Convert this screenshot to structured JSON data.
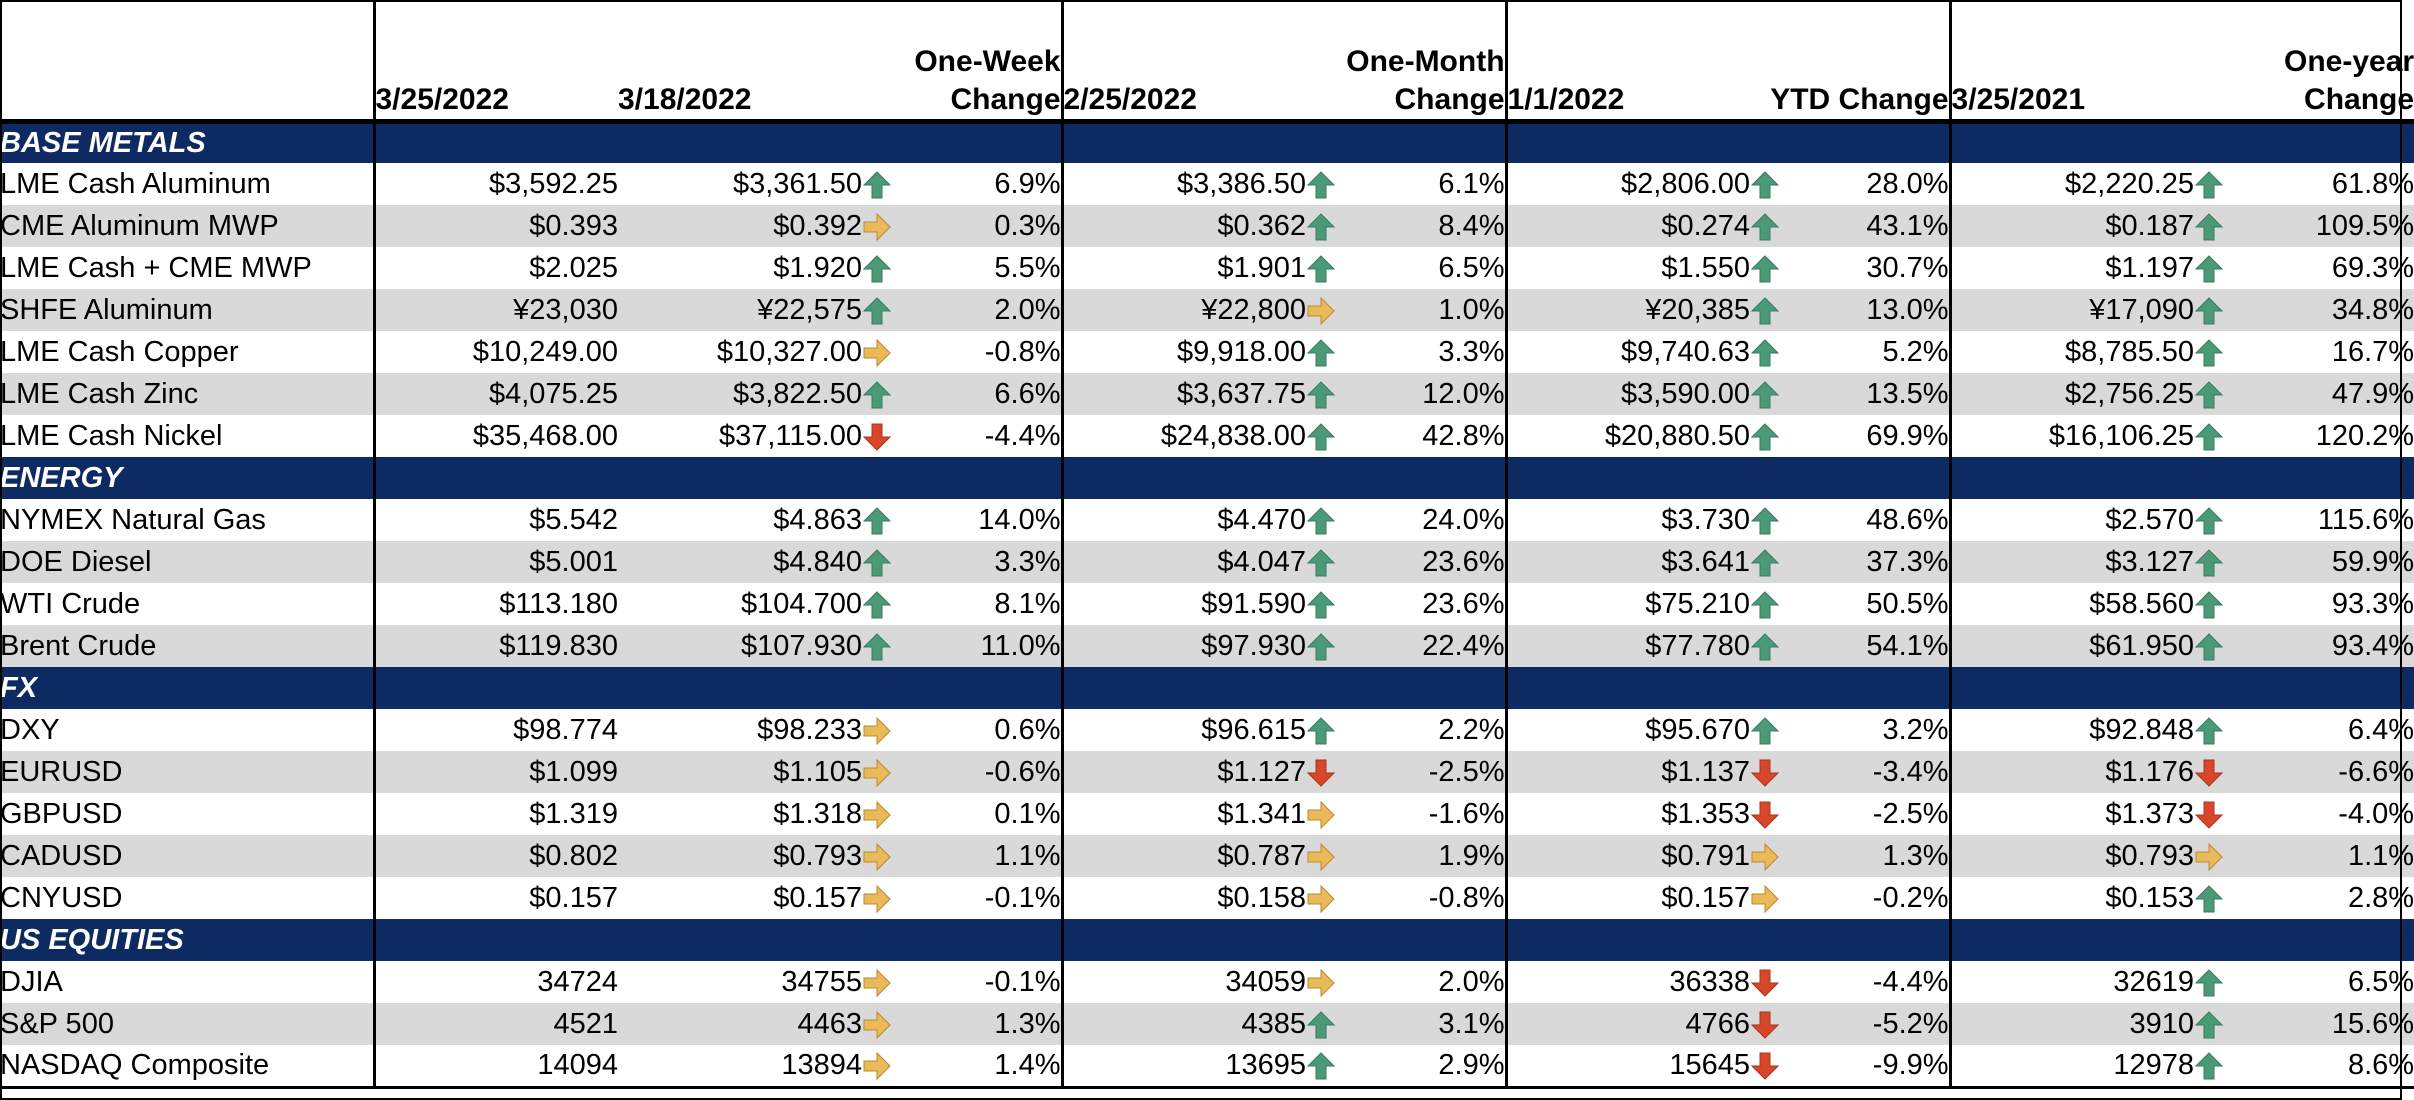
{
  "colors": {
    "section_bg": "#0e2a63",
    "alt_row_bg": "#d9d9d9",
    "up": "#4a9a78",
    "flat": "#e9b95a",
    "down": "#d9472b"
  },
  "header": {
    "date_current": "3/25/2022",
    "date_week": "3/18/2022",
    "week_change": [
      "One-Week",
      "Change"
    ],
    "date_month": "2/25/2022",
    "month_change": [
      "One-Month",
      "Change"
    ],
    "date_ytd": "1/1/2022",
    "ytd_change": "YTD Change",
    "date_year": "3/25/2021",
    "year_change": [
      "One-year",
      "Change"
    ]
  },
  "sections": [
    {
      "title": "BASE METALS",
      "rows": [
        {
          "name": "LME Cash Aluminum",
          "current": "$3,592.25",
          "week": "$3,361.50",
          "week_dir": "up",
          "week_pct": "6.9%",
          "month": "$3,386.50",
          "month_dir": "up",
          "month_pct": "6.1%",
          "ytd": "$2,806.00",
          "ytd_dir": "up",
          "ytd_pct": "28.0%",
          "year": "$2,220.25",
          "year_dir": "up",
          "year_pct": "61.8%"
        },
        {
          "name": "CME Aluminum MWP",
          "current": "$0.393",
          "week": "$0.392",
          "week_dir": "flat",
          "week_pct": "0.3%",
          "month": "$0.362",
          "month_dir": "up",
          "month_pct": "8.4%",
          "ytd": "$0.274",
          "ytd_dir": "up",
          "ytd_pct": "43.1%",
          "year": "$0.187",
          "year_dir": "up",
          "year_pct": "109.5%"
        },
        {
          "name": "LME Cash + CME MWP",
          "current": "$2.025",
          "week": "$1.920",
          "week_dir": "up",
          "week_pct": "5.5%",
          "month": "$1.901",
          "month_dir": "up",
          "month_pct": "6.5%",
          "ytd": "$1.550",
          "ytd_dir": "up",
          "ytd_pct": "30.7%",
          "year": "$1.197",
          "year_dir": "up",
          "year_pct": "69.3%"
        },
        {
          "name": "SHFE Aluminum",
          "current": "¥23,030",
          "week": "¥22,575",
          "week_dir": "up",
          "week_pct": "2.0%",
          "month": "¥22,800",
          "month_dir": "flat",
          "month_pct": "1.0%",
          "ytd": "¥20,385",
          "ytd_dir": "up",
          "ytd_pct": "13.0%",
          "year": "¥17,090",
          "year_dir": "up",
          "year_pct": "34.8%"
        },
        {
          "name": "LME Cash Copper",
          "current": "$10,249.00",
          "week": "$10,327.00",
          "week_dir": "flat",
          "week_pct": "-0.8%",
          "month": "$9,918.00",
          "month_dir": "up",
          "month_pct": "3.3%",
          "ytd": "$9,740.63",
          "ytd_dir": "up",
          "ytd_pct": "5.2%",
          "year": "$8,785.50",
          "year_dir": "up",
          "year_pct": "16.7%"
        },
        {
          "name": "LME Cash Zinc",
          "current": "$4,075.25",
          "week": "$3,822.50",
          "week_dir": "up",
          "week_pct": "6.6%",
          "month": "$3,637.75",
          "month_dir": "up",
          "month_pct": "12.0%",
          "ytd": "$3,590.00",
          "ytd_dir": "up",
          "ytd_pct": "13.5%",
          "year": "$2,756.25",
          "year_dir": "up",
          "year_pct": "47.9%"
        },
        {
          "name": "LME Cash Nickel",
          "current": "$35,468.00",
          "week": "$37,115.00",
          "week_dir": "down",
          "week_pct": "-4.4%",
          "month": "$24,838.00",
          "month_dir": "up",
          "month_pct": "42.8%",
          "ytd": "$20,880.50",
          "ytd_dir": "up",
          "ytd_pct": "69.9%",
          "year": "$16,106.25",
          "year_dir": "up",
          "year_pct": "120.2%"
        }
      ]
    },
    {
      "title": "ENERGY",
      "rows": [
        {
          "name": "NYMEX Natural Gas",
          "current": "$5.542",
          "week": "$4.863",
          "week_dir": "up",
          "week_pct": "14.0%",
          "month": "$4.470",
          "month_dir": "up",
          "month_pct": "24.0%",
          "ytd": "$3.730",
          "ytd_dir": "up",
          "ytd_pct": "48.6%",
          "year": "$2.570",
          "year_dir": "up",
          "year_pct": "115.6%"
        },
        {
          "name": "DOE Diesel",
          "current": "$5.001",
          "week": "$4.840",
          "week_dir": "up",
          "week_pct": "3.3%",
          "month": "$4.047",
          "month_dir": "up",
          "month_pct": "23.6%",
          "ytd": "$3.641",
          "ytd_dir": "up",
          "ytd_pct": "37.3%",
          "year": "$3.127",
          "year_dir": "up",
          "year_pct": "59.9%"
        },
        {
          "name": "WTI Crude",
          "current": "$113.180",
          "week": "$104.700",
          "week_dir": "up",
          "week_pct": "8.1%",
          "month": "$91.590",
          "month_dir": "up",
          "month_pct": "23.6%",
          "ytd": "$75.210",
          "ytd_dir": "up",
          "ytd_pct": "50.5%",
          "year": "$58.560",
          "year_dir": "up",
          "year_pct": "93.3%"
        },
        {
          "name": "Brent Crude",
          "current": "$119.830",
          "week": "$107.930",
          "week_dir": "up",
          "week_pct": "11.0%",
          "month": "$97.930",
          "month_dir": "up",
          "month_pct": "22.4%",
          "ytd": "$77.780",
          "ytd_dir": "up",
          "ytd_pct": "54.1%",
          "year": "$61.950",
          "year_dir": "up",
          "year_pct": "93.4%"
        }
      ]
    },
    {
      "title": "FX",
      "rows": [
        {
          "name": "DXY",
          "current": "$98.774",
          "week": "$98.233",
          "week_dir": "flat",
          "week_pct": "0.6%",
          "month": "$96.615",
          "month_dir": "up",
          "month_pct": "2.2%",
          "ytd": "$95.670",
          "ytd_dir": "up",
          "ytd_pct": "3.2%",
          "year": "$92.848",
          "year_dir": "up",
          "year_pct": "6.4%"
        },
        {
          "name": "EURUSD",
          "current": "$1.099",
          "week": "$1.105",
          "week_dir": "flat",
          "week_pct": "-0.6%",
          "month": "$1.127",
          "month_dir": "down",
          "month_pct": "-2.5%",
          "ytd": "$1.137",
          "ytd_dir": "down",
          "ytd_pct": "-3.4%",
          "year": "$1.176",
          "year_dir": "down",
          "year_pct": "-6.6%"
        },
        {
          "name": "GBPUSD",
          "current": "$1.319",
          "week": "$1.318",
          "week_dir": "flat",
          "week_pct": "0.1%",
          "month": "$1.341",
          "month_dir": "flat",
          "month_pct": "-1.6%",
          "ytd": "$1.353",
          "ytd_dir": "down",
          "ytd_pct": "-2.5%",
          "year": "$1.373",
          "year_dir": "down",
          "year_pct": "-4.0%"
        },
        {
          "name": "CADUSD",
          "current": "$0.802",
          "week": "$0.793",
          "week_dir": "flat",
          "week_pct": "1.1%",
          "month": "$0.787",
          "month_dir": "flat",
          "month_pct": "1.9%",
          "ytd": "$0.791",
          "ytd_dir": "flat",
          "ytd_pct": "1.3%",
          "year": "$0.793",
          "year_dir": "flat",
          "year_pct": "1.1%"
        },
        {
          "name": "CNYUSD",
          "current": "$0.157",
          "week": "$0.157",
          "week_dir": "flat",
          "week_pct": "-0.1%",
          "month": "$0.158",
          "month_dir": "flat",
          "month_pct": "-0.8%",
          "ytd": "$0.157",
          "ytd_dir": "flat",
          "ytd_pct": "-0.2%",
          "year": "$0.153",
          "year_dir": "up",
          "year_pct": "2.8%"
        }
      ]
    },
    {
      "title": "US EQUITIES",
      "rows": [
        {
          "name": "DJIA",
          "current": "34724",
          "week": "34755",
          "week_dir": "flat",
          "week_pct": "-0.1%",
          "month": "34059",
          "month_dir": "flat",
          "month_pct": "2.0%",
          "ytd": "36338",
          "ytd_dir": "down",
          "ytd_pct": "-4.4%",
          "year": "32619",
          "year_dir": "up",
          "year_pct": "6.5%"
        },
        {
          "name": "S&P 500",
          "current": "4521",
          "week": "4463",
          "week_dir": "flat",
          "week_pct": "1.3%",
          "month": "4385",
          "month_dir": "up",
          "month_pct": "3.1%",
          "ytd": "4766",
          "ytd_dir": "down",
          "ytd_pct": "-5.2%",
          "year": "3910",
          "year_dir": "up",
          "year_pct": "15.6%"
        },
        {
          "name": "NASDAQ Composite",
          "current": "14094",
          "week": "13894",
          "week_dir": "flat",
          "week_pct": "1.4%",
          "month": "13695",
          "month_dir": "up",
          "month_pct": "2.9%",
          "ytd": "15645",
          "ytd_dir": "down",
          "ytd_pct": "-9.9%",
          "year": "12978",
          "year_dir": "up",
          "year_pct": "8.6%"
        }
      ]
    }
  ]
}
